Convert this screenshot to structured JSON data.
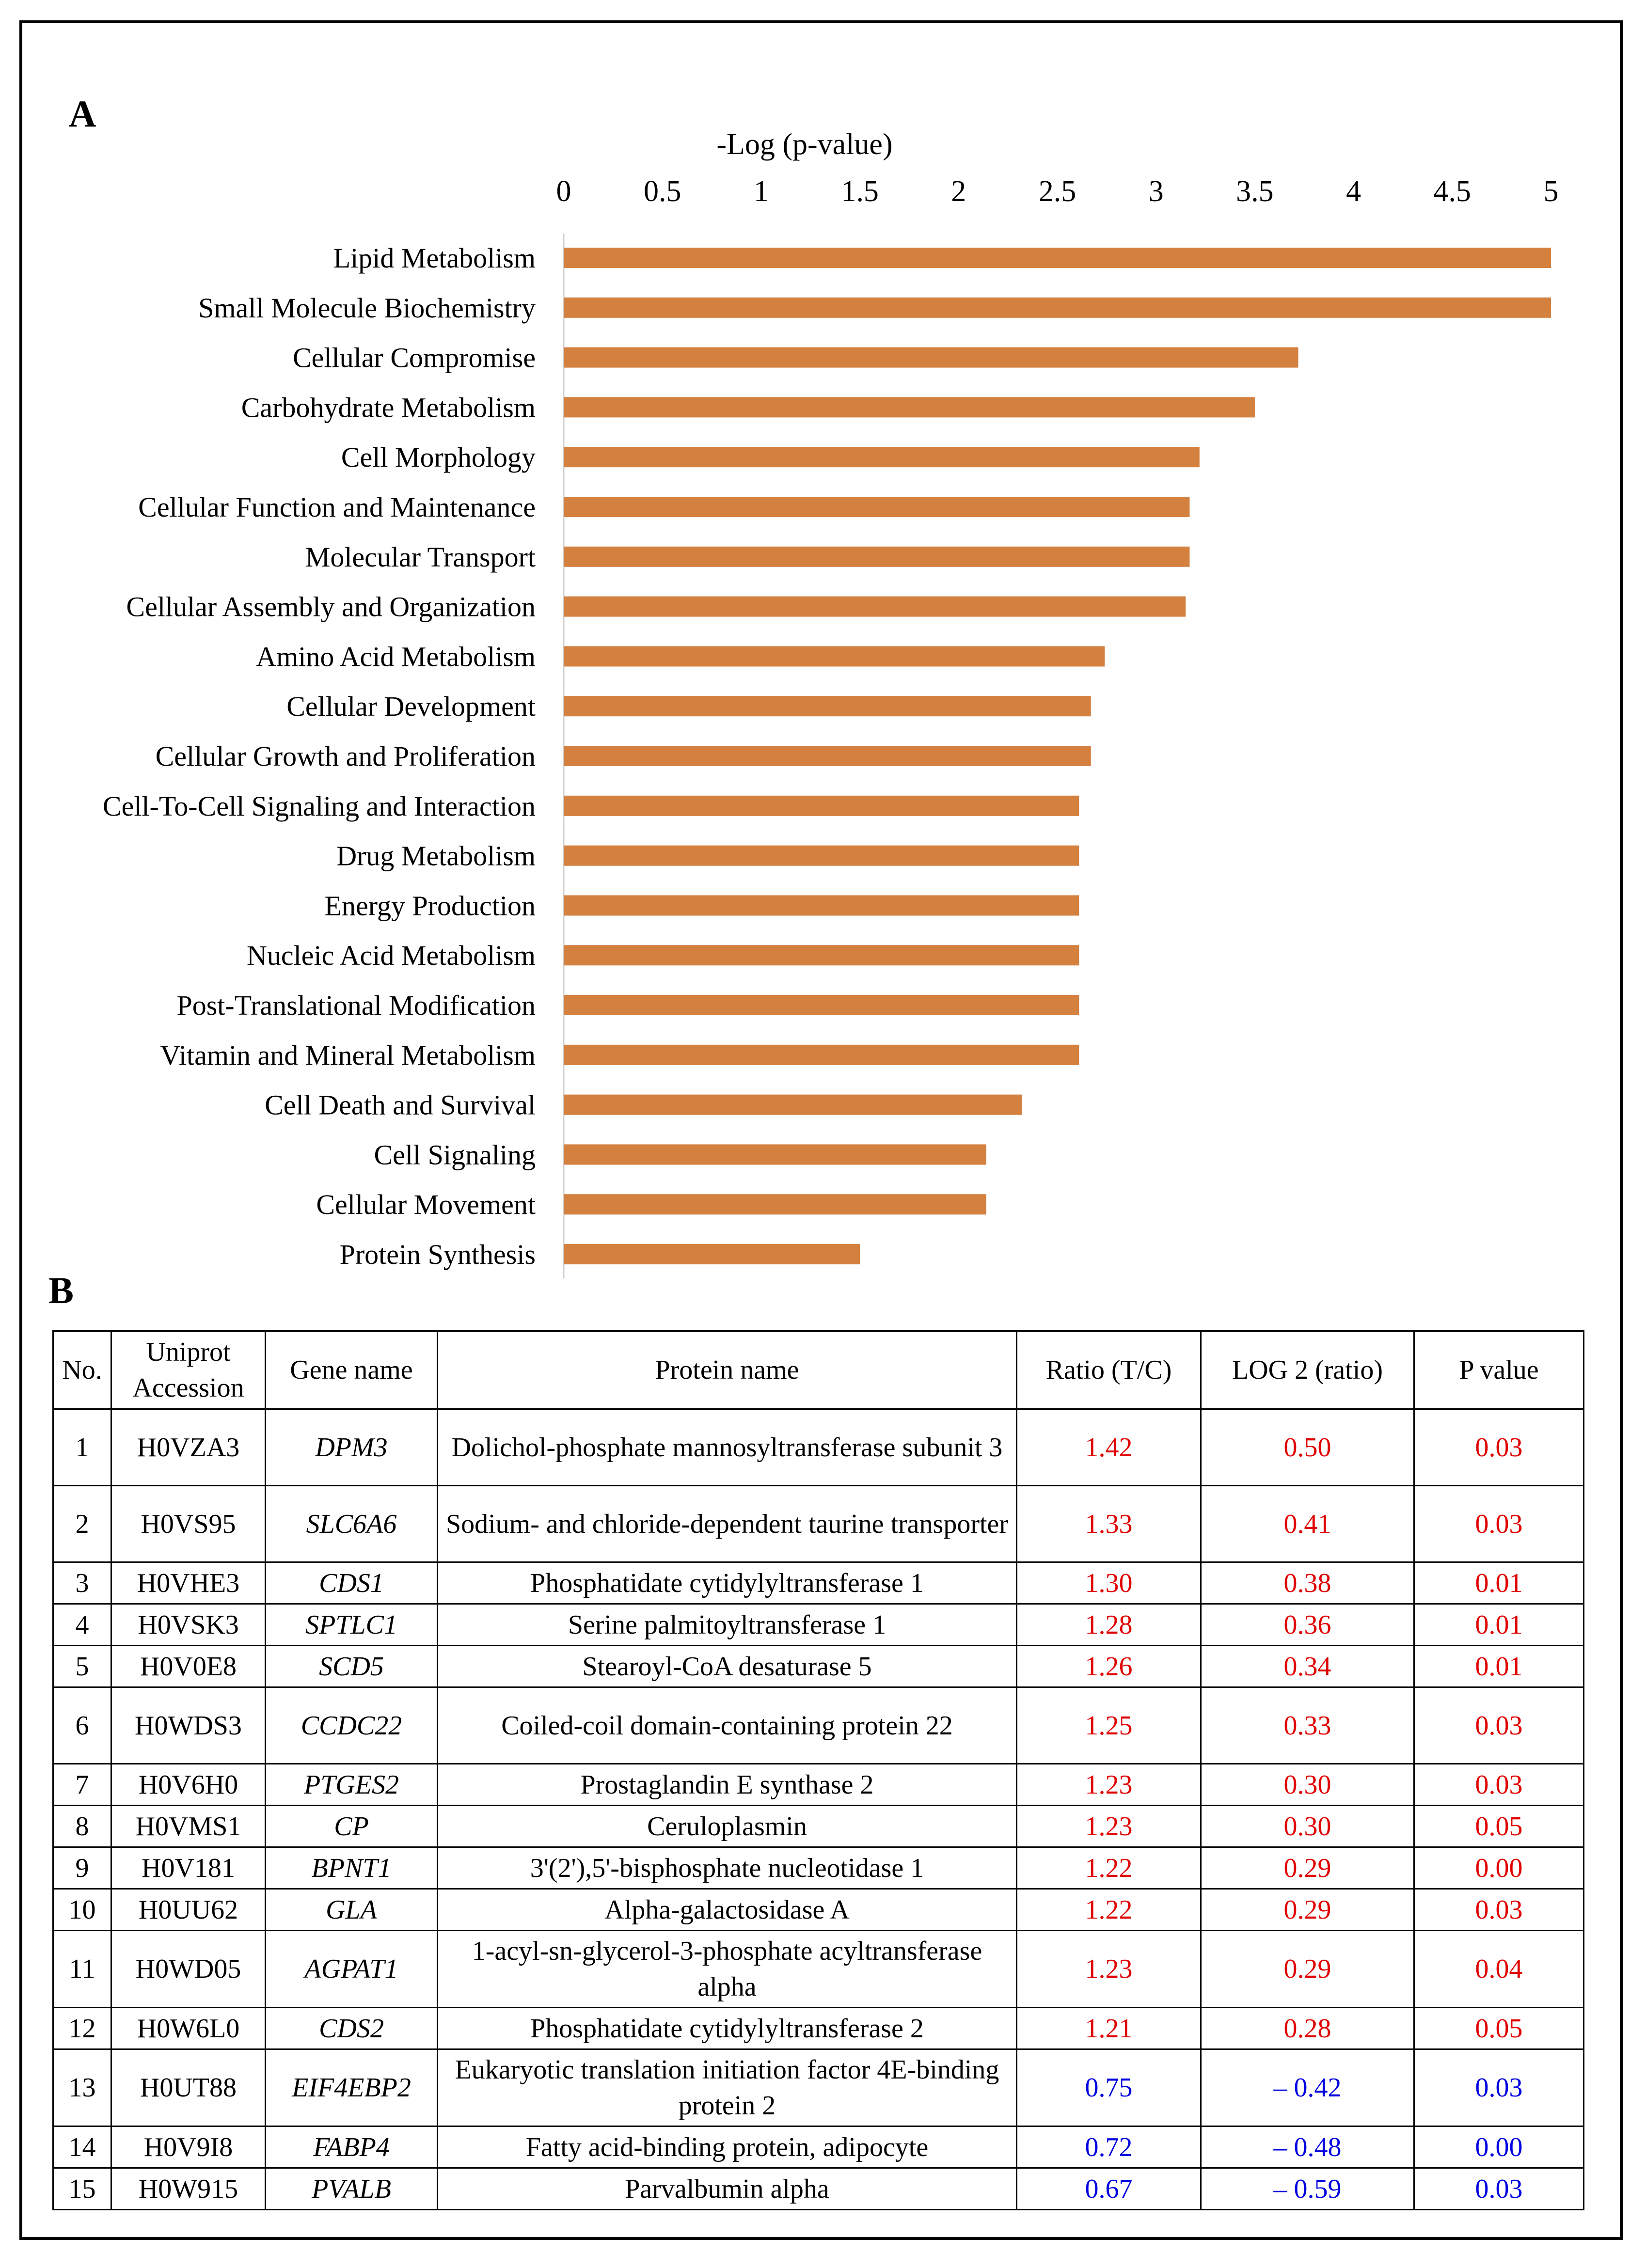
{
  "panel_a_label": "A",
  "panel_b_label": "B",
  "chart_data": {
    "type": "bar",
    "orientation": "horizontal",
    "title": "-Log (p-value)",
    "xlabel": "-Log (p-value)",
    "ylabel": "",
    "xlim": [
      0,
      5
    ],
    "ticks": [
      "0",
      "0.5",
      "1",
      "1.5",
      "2",
      "2.5",
      "3",
      "3.5",
      "4",
      "4.5",
      "5"
    ],
    "tick_values": [
      0,
      0.5,
      1,
      1.5,
      2,
      2.5,
      3,
      3.5,
      4,
      4.5,
      5
    ],
    "bar_color": "#D4803F",
    "grid": false,
    "axis_position": "top",
    "categories": [
      "Lipid Metabolism",
      "Small Molecule Biochemistry",
      "Cellular Compromise",
      "Carbohydrate Metabolism",
      "Cell Morphology",
      "Cellular Function and Maintenance",
      "Molecular Transport",
      "Cellular Assembly and Organization",
      "Amino Acid Metabolism",
      "Cellular Development",
      "Cellular Growth and Proliferation",
      "Cell-To-Cell Signaling and Interaction",
      "Drug Metabolism",
      "Energy Production",
      "Nucleic Acid Metabolism",
      "Post-Translational Modification",
      "Vitamin and Mineral Metabolism",
      "Cell Death and Survival",
      "Cell Signaling",
      "Cellular Movement",
      "Protein Synthesis"
    ],
    "values": [
      5.0,
      5.0,
      3.72,
      3.5,
      3.22,
      3.17,
      3.17,
      3.15,
      2.74,
      2.67,
      2.67,
      2.61,
      2.61,
      2.61,
      2.61,
      2.61,
      2.61,
      2.32,
      2.14,
      2.14,
      1.5
    ]
  },
  "table": {
    "headers": [
      "No.",
      "Uniprot Accession",
      "Gene name",
      "Protein name",
      "Ratio (T/C)",
      "LOG 2 (ratio)",
      "P value"
    ],
    "rows": [
      {
        "no": "1",
        "acc": "H0VZA3",
        "gene": "DPM3",
        "protein": "Dolichol-phosphate mannosyltransferase subunit 3",
        "ratio": "1.42",
        "log2": "0.50",
        "p": "0.03",
        "dir": "up"
      },
      {
        "no": "2",
        "acc": "H0VS95",
        "gene": "SLC6A6",
        "protein": "Sodium- and chloride-dependent taurine transporter",
        "ratio": "1.33",
        "log2": "0.41",
        "p": "0.03",
        "dir": "up"
      },
      {
        "no": "3",
        "acc": "H0VHE3",
        "gene": "CDS1",
        "protein": "Phosphatidate cytidylyltransferase 1",
        "ratio": "1.30",
        "log2": "0.38",
        "p": "0.01",
        "dir": "up"
      },
      {
        "no": "4",
        "acc": "H0VSK3",
        "gene": "SPTLC1",
        "protein": "Serine palmitoyltransferase 1",
        "ratio": "1.28",
        "log2": "0.36",
        "p": "0.01",
        "dir": "up"
      },
      {
        "no": "5",
        "acc": "H0V0E8",
        "gene": "SCD5",
        "protein": "Stearoyl-CoA desaturase 5",
        "ratio": "1.26",
        "log2": "0.34",
        "p": "0.01",
        "dir": "up"
      },
      {
        "no": "6",
        "acc": "H0WDS3",
        "gene": "CCDC22",
        "protein": "Coiled-coil domain-containing protein 22",
        "ratio": "1.25",
        "log2": "0.33",
        "p": "0.03",
        "dir": "up"
      },
      {
        "no": "7",
        "acc": "H0V6H0",
        "gene": "PTGES2",
        "protein": "Prostaglandin E synthase 2",
        "ratio": "1.23",
        "log2": "0.30",
        "p": "0.03",
        "dir": "up"
      },
      {
        "no": "8",
        "acc": "H0VMS1",
        "gene": "CP",
        "protein": "Ceruloplasmin",
        "ratio": "1.23",
        "log2": "0.30",
        "p": "0.05",
        "dir": "up"
      },
      {
        "no": "9",
        "acc": "H0V181",
        "gene": "BPNT1",
        "protein": "3'(2'),5'-bisphosphate nucleotidase 1",
        "ratio": "1.22",
        "log2": "0.29",
        "p": "0.00",
        "dir": "up"
      },
      {
        "no": "10",
        "acc": "H0UU62",
        "gene": "GLA",
        "protein": "Alpha-galactosidase A",
        "ratio": "1.22",
        "log2": "0.29",
        "p": "0.03",
        "dir": "up"
      },
      {
        "no": "11",
        "acc": "H0WD05",
        "gene": "AGPAT1",
        "protein": "1-acyl-sn-glycerol-3-phosphate acyltransferase alpha",
        "ratio": "1.23",
        "log2": "0.29",
        "p": "0.04",
        "dir": "up"
      },
      {
        "no": "12",
        "acc": "H0W6L0",
        "gene": "CDS2",
        "protein": "Phosphatidate cytidylyltransferase 2",
        "ratio": "1.21",
        "log2": "0.28",
        "p": "0.05",
        "dir": "up"
      },
      {
        "no": "13",
        "acc": "H0UT88",
        "gene": "EIF4EBP2",
        "protein": "Eukaryotic translation initiation factor 4E-binding protein 2",
        "ratio": "0.75",
        "log2": "– 0.42",
        "p": "0.03",
        "dir": "down"
      },
      {
        "no": "14",
        "acc": "H0V9I8",
        "gene": "FABP4",
        "protein": "Fatty acid-binding protein, adipocyte",
        "ratio": "0.72",
        "log2": "– 0.48",
        "p": "0.00",
        "dir": "down"
      },
      {
        "no": "15",
        "acc": "H0W915",
        "gene": "PVALB",
        "protein": "Parvalbumin alpha",
        "ratio": "0.67",
        "log2": "– 0.59",
        "p": "0.03",
        "dir": "down"
      }
    ]
  }
}
